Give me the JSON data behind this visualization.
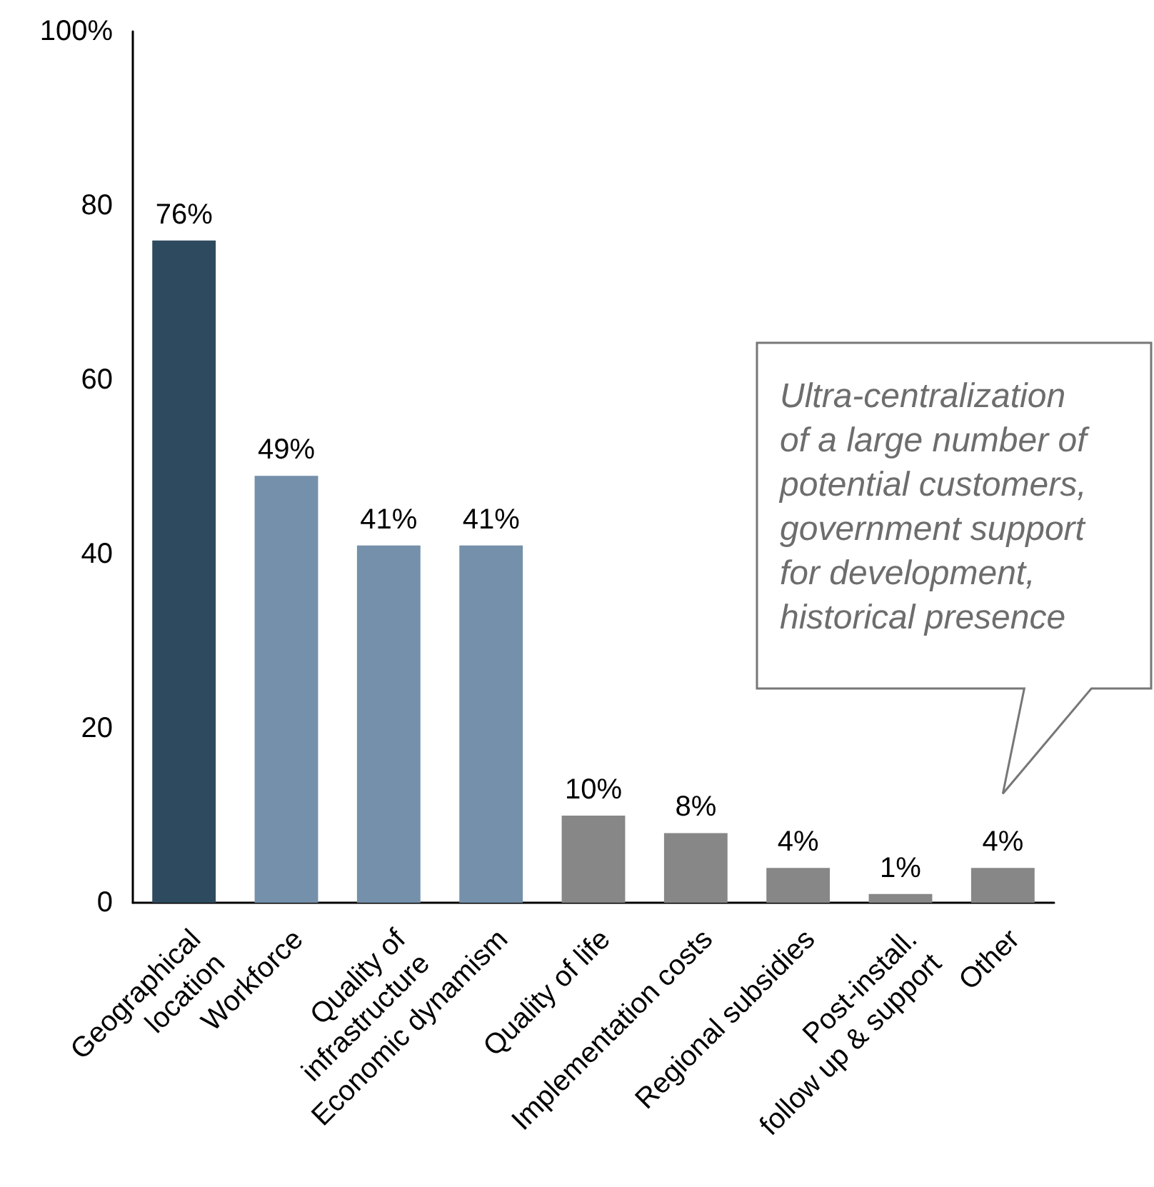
{
  "chart_data": {
    "type": "bar",
    "categories": [
      "Geographical\nlocation",
      "Workforce",
      "Quality of\ninfrastructure",
      "Economic dynamism",
      "Quality of life",
      "Implementation costs",
      "Regional subsidies",
      "Post-install.\nfollow up & support",
      "Other"
    ],
    "values": [
      76,
      49,
      41,
      41,
      10,
      8,
      4,
      1,
      4
    ],
    "value_labels": [
      "76%",
      "49%",
      "41%",
      "41%",
      "10%",
      "8%",
      "4%",
      "1%",
      "4%"
    ],
    "colors": [
      "#2e4a5e",
      "#7590aa",
      "#7590aa",
      "#7590aa",
      "#878787",
      "#878787",
      "#878787",
      "#878787",
      "#878787"
    ],
    "ylim": [
      0,
      100
    ],
    "yticks": [
      0,
      20,
      40,
      60,
      80,
      {
        "value": 100,
        "label": "100%"
      }
    ],
    "grid": false,
    "annotations": [
      "Ultra-centralization\nof a large number of\npotential customers,\ngovernment support\nfor development,\nhistorical presence"
    ]
  }
}
